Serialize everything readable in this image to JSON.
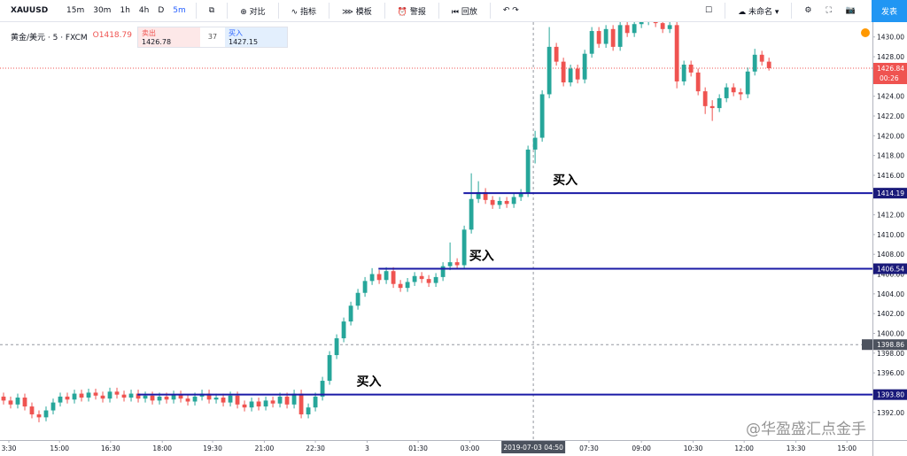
{
  "toolbar": {
    "symbol": "XAUUSD",
    "intervals": [
      "15m",
      "30m",
      "1h",
      "4h",
      "D",
      "5m"
    ],
    "buttons": [
      "对比",
      "指标",
      "模板",
      "警报",
      "回放"
    ],
    "layout_name": "未命名",
    "publish": "发表"
  },
  "legend": {
    "instrument": "黄金/美元 · 5 · FXCM",
    "open_label": "O1418.79",
    "sell_label": "卖出",
    "sell_price": "1426.78",
    "spread": "37",
    "buy_label": "买入",
    "buy_price": "1427.15"
  },
  "watermark": "@华盈盛汇点金手",
  "chart_data": {
    "type": "candlestick",
    "up_color": "#26a69a",
    "down_color": "#ef5350",
    "xlim": [
      -0.5,
      122.6
    ],
    "ylim": [
      1389.2,
      1431.5
    ],
    "grid": false,
    "ohlc": [
      [
        1393.6,
        1394.0,
        1392.8,
        1393.2
      ],
      [
        1393.2,
        1393.6,
        1392.4,
        1392.8
      ],
      [
        1392.8,
        1393.9,
        1392.4,
        1393.5
      ],
      [
        1393.5,
        1393.9,
        1392.2,
        1392.6
      ],
      [
        1392.6,
        1393.0,
        1391.4,
        1391.8
      ],
      [
        1391.8,
        1392.2,
        1391.0,
        1391.5
      ],
      [
        1391.5,
        1392.6,
        1391.1,
        1392.2
      ],
      [
        1392.2,
        1393.4,
        1391.8,
        1393.0
      ],
      [
        1393.0,
        1394.0,
        1392.6,
        1393.6
      ],
      [
        1393.6,
        1394.0,
        1392.9,
        1393.3
      ],
      [
        1393.3,
        1394.3,
        1392.9,
        1393.9
      ],
      [
        1393.9,
        1394.3,
        1393.1,
        1393.5
      ],
      [
        1393.5,
        1394.4,
        1393.1,
        1394.0
      ],
      [
        1394.0,
        1394.4,
        1393.3,
        1393.7
      ],
      [
        1393.7,
        1394.1,
        1393.0,
        1393.4
      ],
      [
        1393.4,
        1394.5,
        1393.0,
        1394.1
      ],
      [
        1394.1,
        1394.5,
        1393.4,
        1393.8
      ],
      [
        1393.8,
        1394.2,
        1393.1,
        1393.5
      ],
      [
        1393.5,
        1394.3,
        1393.1,
        1393.9
      ],
      [
        1393.9,
        1394.3,
        1393.0,
        1393.4
      ],
      [
        1393.4,
        1394.1,
        1393.0,
        1393.7
      ],
      [
        1393.7,
        1394.1,
        1392.8,
        1393.2
      ],
      [
        1393.2,
        1394.0,
        1392.8,
        1393.6
      ],
      [
        1393.6,
        1394.0,
        1392.9,
        1393.3
      ],
      [
        1393.3,
        1394.2,
        1392.9,
        1393.8
      ],
      [
        1393.8,
        1394.2,
        1393.0,
        1393.4
      ],
      [
        1393.4,
        1393.8,
        1392.7,
        1393.1
      ],
      [
        1393.1,
        1394.0,
        1392.7,
        1393.6
      ],
      [
        1393.6,
        1394.3,
        1393.2,
        1393.9
      ],
      [
        1393.9,
        1394.3,
        1392.9,
        1393.3
      ],
      [
        1393.3,
        1393.9,
        1392.9,
        1393.5
      ],
      [
        1393.5,
        1393.9,
        1392.6,
        1393.0
      ],
      [
        1393.0,
        1394.1,
        1392.6,
        1393.7
      ],
      [
        1393.7,
        1394.1,
        1392.4,
        1392.8
      ],
      [
        1392.8,
        1393.2,
        1392.1,
        1392.5
      ],
      [
        1392.5,
        1393.5,
        1392.1,
        1393.1
      ],
      [
        1393.1,
        1393.5,
        1392.2,
        1392.6
      ],
      [
        1392.6,
        1393.6,
        1392.2,
        1393.2
      ],
      [
        1393.2,
        1393.6,
        1392.5,
        1392.9
      ],
      [
        1392.9,
        1394.0,
        1392.5,
        1393.6
      ],
      [
        1393.6,
        1394.0,
        1392.4,
        1392.8
      ],
      [
        1392.8,
        1394.3,
        1392.4,
        1393.9
      ],
      [
        1393.9,
        1394.3,
        1391.4,
        1391.8
      ],
      [
        1391.8,
        1392.9,
        1391.4,
        1392.5
      ],
      [
        1392.5,
        1394.0,
        1392.1,
        1393.6
      ],
      [
        1393.6,
        1395.6,
        1393.2,
        1395.2
      ],
      [
        1395.2,
        1398.2,
        1394.8,
        1397.8
      ],
      [
        1397.8,
        1399.9,
        1397.4,
        1399.5
      ],
      [
        1399.5,
        1401.6,
        1399.1,
        1401.2
      ],
      [
        1401.2,
        1403.2,
        1400.8,
        1402.8
      ],
      [
        1402.8,
        1404.5,
        1402.4,
        1404.1
      ],
      [
        1404.1,
        1405.7,
        1403.7,
        1405.3
      ],
      [
        1405.3,
        1406.6,
        1404.9,
        1406.0
      ],
      [
        1406.0,
        1406.4,
        1405.0,
        1405.4
      ],
      [
        1405.4,
        1406.7,
        1405.0,
        1406.3
      ],
      [
        1406.3,
        1406.7,
        1404.6,
        1405.0
      ],
      [
        1405.0,
        1405.4,
        1404.2,
        1404.6
      ],
      [
        1404.6,
        1405.6,
        1404.2,
        1405.2
      ],
      [
        1405.2,
        1406.2,
        1404.8,
        1405.8
      ],
      [
        1405.8,
        1406.2,
        1405.1,
        1405.5
      ],
      [
        1405.5,
        1405.9,
        1404.7,
        1405.1
      ],
      [
        1405.1,
        1406.1,
        1404.7,
        1405.7
      ],
      [
        1405.7,
        1407.2,
        1405.3,
        1406.8
      ],
      [
        1406.8,
        1409.2,
        1406.4,
        1407.2
      ],
      [
        1407.2,
        1407.6,
        1406.5,
        1406.9
      ],
      [
        1406.9,
        1410.9,
        1406.5,
        1410.5
      ],
      [
        1410.5,
        1416.2,
        1410.1,
        1413.6
      ],
      [
        1413.6,
        1415.4,
        1413.2,
        1414.3
      ],
      [
        1414.3,
        1414.7,
        1413.1,
        1413.5
      ],
      [
        1413.5,
        1413.9,
        1412.6,
        1413.0
      ],
      [
        1413.0,
        1413.8,
        1412.6,
        1413.4
      ],
      [
        1413.4,
        1413.8,
        1412.7,
        1413.1
      ],
      [
        1413.1,
        1414.2,
        1412.7,
        1413.8
      ],
      [
        1413.8,
        1414.6,
        1413.4,
        1414.2
      ],
      [
        1414.2,
        1419.0,
        1413.8,
        1418.6
      ],
      [
        1418.6,
        1420.5,
        1417.2,
        1419.8
      ],
      [
        1419.8,
        1424.6,
        1419.4,
        1424.2
      ],
      [
        1424.2,
        1431.0,
        1423.8,
        1429.0
      ],
      [
        1429.0,
        1429.4,
        1427.1,
        1427.5
      ],
      [
        1427.5,
        1427.9,
        1425.0,
        1425.4
      ],
      [
        1425.4,
        1427.2,
        1425.0,
        1426.8
      ],
      [
        1426.8,
        1427.2,
        1425.3,
        1425.7
      ],
      [
        1425.7,
        1428.7,
        1425.3,
        1428.3
      ],
      [
        1428.3,
        1431.0,
        1427.9,
        1430.6
      ],
      [
        1430.6,
        1431.0,
        1428.9,
        1429.3
      ],
      [
        1429.3,
        1431.2,
        1428.9,
        1430.8
      ],
      [
        1430.8,
        1431.2,
        1428.6,
        1429.0
      ],
      [
        1429.0,
        1431.6,
        1428.6,
        1431.2
      ],
      [
        1431.2,
        1431.6,
        1430.0,
        1430.4
      ],
      [
        1430.4,
        1431.7,
        1430.0,
        1431.3
      ],
      [
        1431.3,
        1432.0,
        1430.9,
        1431.6
      ],
      [
        1431.6,
        1432.4,
        1431.2,
        1432.0
      ],
      [
        1432.0,
        1432.4,
        1431.0,
        1431.4
      ],
      [
        1431.4,
        1431.8,
        1430.4,
        1430.8
      ],
      [
        1430.8,
        1431.6,
        1430.4,
        1431.2
      ],
      [
        1431.2,
        1431.6,
        1424.8,
        1425.5
      ],
      [
        1425.5,
        1427.6,
        1425.1,
        1427.2
      ],
      [
        1427.2,
        1427.6,
        1426.0,
        1426.4
      ],
      [
        1426.4,
        1426.8,
        1424.1,
        1424.5
      ],
      [
        1424.5,
        1424.9,
        1422.2,
        1423.0
      ],
      [
        1423.0,
        1423.6,
        1421.5,
        1422.8
      ],
      [
        1422.8,
        1424.2,
        1422.4,
        1423.8
      ],
      [
        1423.8,
        1425.3,
        1423.4,
        1424.9
      ],
      [
        1424.9,
        1425.3,
        1424.0,
        1424.4
      ],
      [
        1424.4,
        1424.8,
        1423.6,
        1424.2
      ],
      [
        1424.2,
        1426.9,
        1423.8,
        1426.5
      ],
      [
        1426.5,
        1428.8,
        1426.1,
        1428.2
      ],
      [
        1428.2,
        1428.6,
        1427.1,
        1427.5
      ],
      [
        1427.5,
        1427.9,
        1426.6,
        1426.84
      ]
    ],
    "yticks": [
      {
        "value": 1392,
        "label": "1392.00"
      },
      {
        "value": 1394,
        "label": "1394.00"
      },
      {
        "value": 1396,
        "label": "1396.00"
      },
      {
        "value": 1398,
        "label": "1398.00"
      },
      {
        "value": 1400,
        "label": "1400.00"
      },
      {
        "value": 1402,
        "label": "1402.00"
      },
      {
        "value": 1404,
        "label": "1404.00"
      },
      {
        "value": 1406,
        "label": "1406.00"
      },
      {
        "value": 1408,
        "label": "1408.00"
      },
      {
        "value": 1410,
        "label": "1410.00"
      },
      {
        "value": 1412,
        "label": "1412.00"
      },
      {
        "value": 1414,
        "label": "1414.00"
      },
      {
        "value": 1416,
        "label": "1416.00"
      },
      {
        "value": 1418,
        "label": "1418.00"
      },
      {
        "value": 1420,
        "label": "1420.00"
      },
      {
        "value": 1422,
        "label": "1422.00"
      },
      {
        "value": 1424,
        "label": "1424.00"
      },
      {
        "value": 1426,
        "label": "1426.00"
      },
      {
        "value": 1428,
        "label": "1428.00"
      },
      {
        "value": 1430,
        "label": "1430.00"
      }
    ],
    "xticks": [
      {
        "value": 0.75,
        "label": "3:30"
      },
      {
        "value": 7.9,
        "label": "15:00"
      },
      {
        "value": 15.1,
        "label": "16:30"
      },
      {
        "value": 22.4,
        "label": "18:00"
      },
      {
        "value": 29.5,
        "label": "19:30"
      },
      {
        "value": 36.8,
        "label": "21:00"
      },
      {
        "value": 44,
        "label": "22:30"
      },
      {
        "value": 51.3,
        "label": "3"
      },
      {
        "value": 58.5,
        "label": "01:30"
      },
      {
        "value": 65.8,
        "label": "03:00"
      },
      {
        "value": 82.6,
        "label": "07:30"
      },
      {
        "value": 90,
        "label": "09:00"
      },
      {
        "value": 97.3,
        "label": "10:30"
      },
      {
        "value": 104.5,
        "label": "12:00"
      },
      {
        "value": 111.8,
        "label": "13:30"
      },
      {
        "value": 119,
        "label": "15:00"
      }
    ],
    "levels": [
      {
        "value": 1393.8,
        "label": "1393.80",
        "x_start": 18.9,
        "note": "买入",
        "note_x": 49.8
      },
      {
        "value": 1406.54,
        "label": "1406.54",
        "x_start": 52.9,
        "note": "买入",
        "note_x": 65.7
      },
      {
        "value": 1414.19,
        "label": "1414.19",
        "x_start": 64.9,
        "note": "买入",
        "note_x": 77.5
      }
    ],
    "last_price": {
      "value": 1426.84,
      "label": "1426.84",
      "countdown": "00:26"
    },
    "crosshair": {
      "x": 74.75,
      "x_label": "2019-07-03  04:50",
      "y": 1398.86,
      "y_label": "1398.86"
    }
  }
}
